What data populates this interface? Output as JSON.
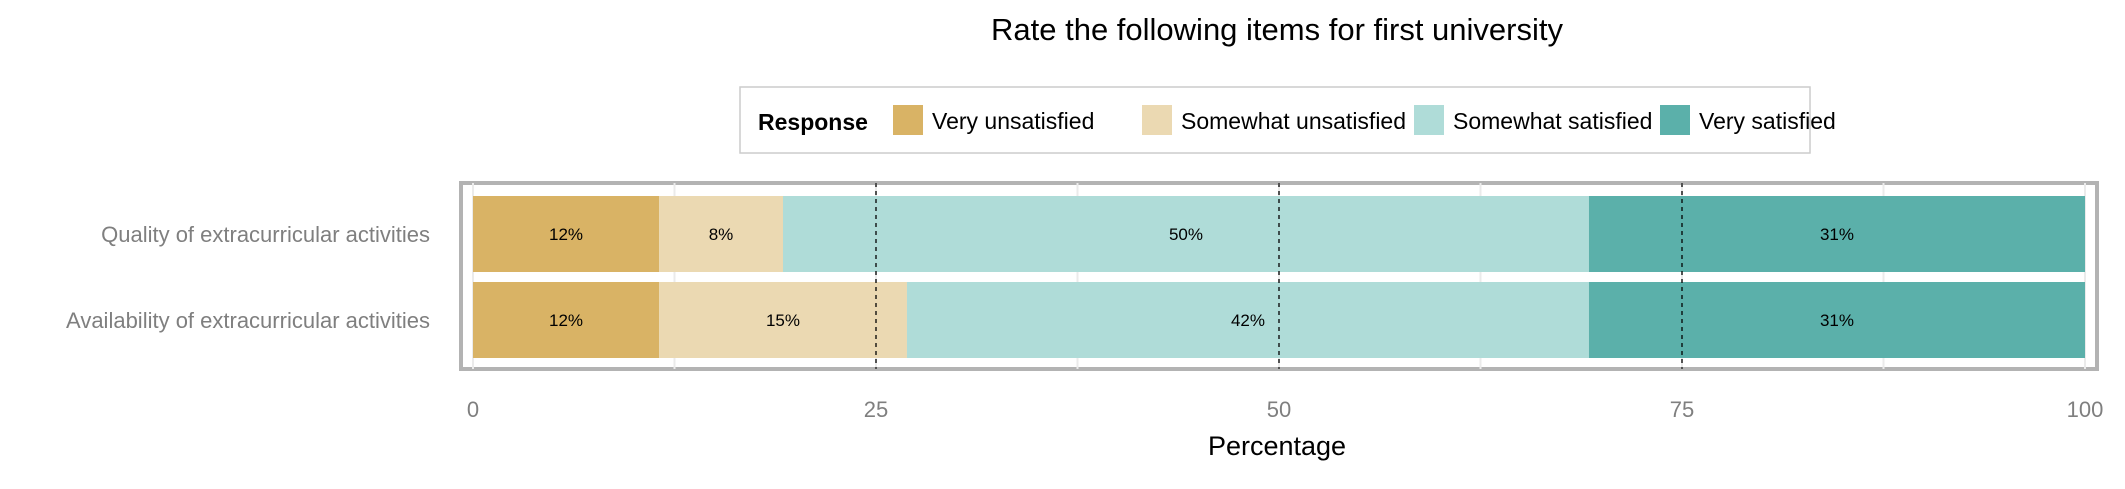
{
  "chart_data": {
    "type": "bar",
    "orientation": "horizontal",
    "stacked": true,
    "title": "Rate the following items for first university",
    "xlabel": "Percentage",
    "ylabel": "",
    "xlim": [
      0,
      100
    ],
    "x_ticks": [
      "0",
      "25",
      "50",
      "75",
      "100"
    ],
    "x_tick_values": [
      0,
      25,
      50,
      75,
      100
    ],
    "grid": true,
    "legend": {
      "title": "Response",
      "position": "top",
      "entries": [
        "Very unsatisfied",
        "Somewhat unsatisfied",
        "Somewhat satisfied",
        "Very satisfied"
      ]
    },
    "categories": [
      "Quality of extracurricular activities",
      "Availability of extracurricular activities"
    ],
    "series": [
      {
        "name": "Very unsatisfied",
        "color": "#D9B365",
        "values": [
          11.54,
          11.54
        ],
        "labels": [
          "12%",
          "12%"
        ]
      },
      {
        "name": "Somewhat unsatisfied",
        "color": "#EBD9B2",
        "values": [
          7.69,
          15.38
        ],
        "labels": [
          "8%",
          "15%"
        ]
      },
      {
        "name": "Somewhat satisfied",
        "color": "#AFDCD8",
        "values": [
          50.0,
          42.31
        ],
        "labels": [
          "50%",
          "42%"
        ]
      },
      {
        "name": "Very satisfied",
        "color": "#5BB0AA",
        "values": [
          30.77,
          30.77
        ],
        "labels": [
          "31%",
          "31%"
        ]
      }
    ]
  }
}
